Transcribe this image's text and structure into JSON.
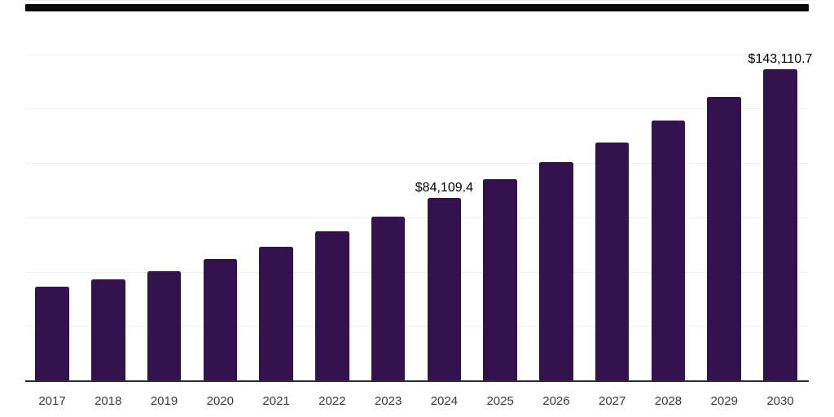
{
  "chart_data": {
    "type": "bar",
    "title": "",
    "xlabel": "",
    "ylabel": "",
    "categories": [
      "2017",
      "2018",
      "2019",
      "2020",
      "2021",
      "2022",
      "2023",
      "2024",
      "2025",
      "2026",
      "2027",
      "2028",
      "2029",
      "2030"
    ],
    "values": [
      43100,
      46400,
      50200,
      55700,
      61300,
      68400,
      75400,
      84109.4,
      92500,
      100300,
      109600,
      119600,
      130400,
      143110.7
    ],
    "data_labels": [
      {
        "category": "2024",
        "label": "$84,109.4"
      },
      {
        "category": "2030",
        "label": "$143,110.7"
      }
    ],
    "ylim": [
      0,
      175000
    ],
    "grid": true,
    "grid_interval": 25000,
    "y_axis_tick_labels_visible": false,
    "legend_position": "none",
    "colors": {
      "bar": "#34124E",
      "gridline": "#f0f0f0",
      "axis_line": "#2d2d2d",
      "top_border": "#0a0a0a",
      "x_tick_text": "#3b3b3b",
      "value_label_text": "#000000",
      "background": "#ffffff"
    }
  }
}
